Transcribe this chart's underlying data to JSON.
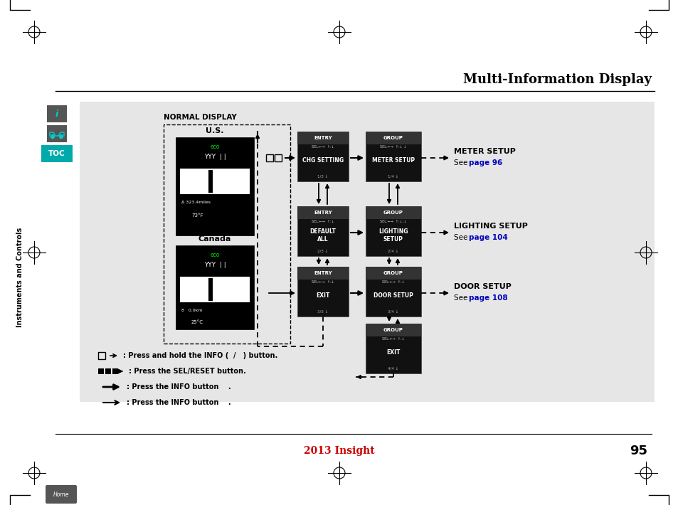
{
  "page_bg": "#ffffff",
  "diagram_bg": "#e6e6e6",
  "title": "Multi-Information Display",
  "footer_text": "2013 Insight",
  "footer_color": "#cc0000",
  "page_num": "95",
  "figw": 9.54,
  "figh": 7.1,
  "dpi": 100
}
